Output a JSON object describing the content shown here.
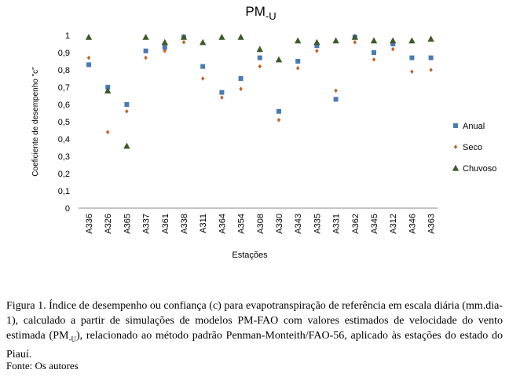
{
  "chart_data": {
    "type": "scatter",
    "title": "PM",
    "title_sub": "-U",
    "xlabel": "Estações",
    "ylabel": "Coeficiente de desempenho \"c\"",
    "ylim": [
      0,
      1
    ],
    "yticks": [
      "0",
      "0,1",
      "0,2",
      "0,3",
      "0,4",
      "0,5",
      "0,6",
      "0,7",
      "0,8",
      "0,9",
      "1"
    ],
    "grid": false,
    "legend_position": "right",
    "categories": [
      "A336",
      "A326",
      "A365",
      "A337",
      "A361",
      "A338",
      "A311",
      "A364",
      "A354",
      "A308",
      "A330",
      "A343",
      "A335",
      "A331",
      "A362",
      "A345",
      "A312",
      "A346",
      "A363"
    ],
    "series": [
      {
        "name": "Anual",
        "marker": "square",
        "color": "#4a7ab5",
        "values": [
          0.83,
          0.7,
          0.6,
          0.91,
          0.93,
          0.99,
          0.82,
          0.67,
          0.75,
          0.87,
          0.56,
          0.85,
          0.94,
          0.63,
          0.99,
          0.9,
          0.95,
          0.87,
          0.87
        ]
      },
      {
        "name": "Seco",
        "marker": "diamond",
        "color": "#c0622a",
        "values": [
          0.87,
          0.44,
          0.56,
          0.87,
          0.91,
          0.96,
          0.75,
          0.64,
          0.69,
          0.82,
          0.51,
          0.81,
          0.91,
          0.68,
          0.96,
          0.86,
          0.92,
          0.79,
          0.8
        ]
      },
      {
        "name": "Chuvoso",
        "marker": "triangle",
        "color": "#3d5a2a",
        "values": [
          0.99,
          0.68,
          0.36,
          0.99,
          0.96,
          0.99,
          0.96,
          0.99,
          0.99,
          0.92,
          0.86,
          0.97,
          0.96,
          0.97,
          0.99,
          0.97,
          0.97,
          0.97,
          0.98
        ]
      }
    ]
  },
  "caption": {
    "p1": "Figura 1. Índice de desempenho ou confiança (c) para evapotranspiração de referência em escala diária (mm.dia-1), calculado a partir de simulações de modelos PM-FAO com valores estimados de velocidade do vento estimada (PM",
    "p1_sub": "-U",
    "p2": "), relacionado ao método padrão Penman-Monteith/FAO-56, aplicado às estações do estado do Piauí.",
    "source": "Fonte: Os autores"
  }
}
